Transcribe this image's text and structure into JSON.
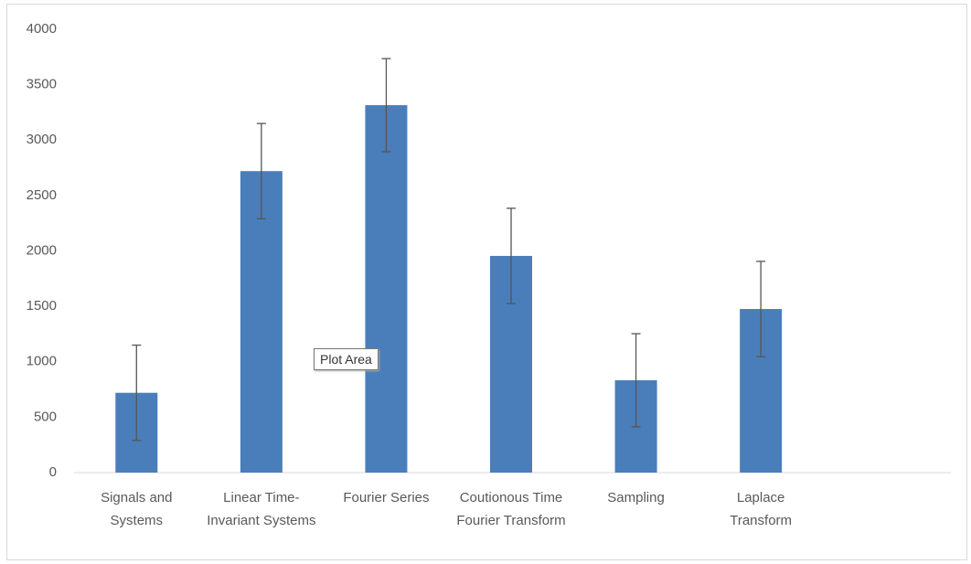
{
  "chart_data": {
    "type": "bar",
    "categories": [
      "Signals and Systems",
      "Linear Time-Invariant Systems",
      "Fourier Series",
      "Coutionous Time Fourier Transform",
      "Sampling",
      "Laplace Transform",
      null
    ],
    "values": [
      720,
      2720,
      3315,
      1955,
      833,
      1476,
      null
    ],
    "errors": [
      430,
      430,
      420,
      430,
      420,
      430,
      null
    ],
    "color": "#4a7ebb",
    "error_color": "#555555",
    "ylim": [
      0,
      4000
    ],
    "yticks": [
      0,
      500,
      1000,
      1500,
      2000,
      2500,
      3000,
      3500,
      4000
    ],
    "annotation": "Plot Area"
  }
}
